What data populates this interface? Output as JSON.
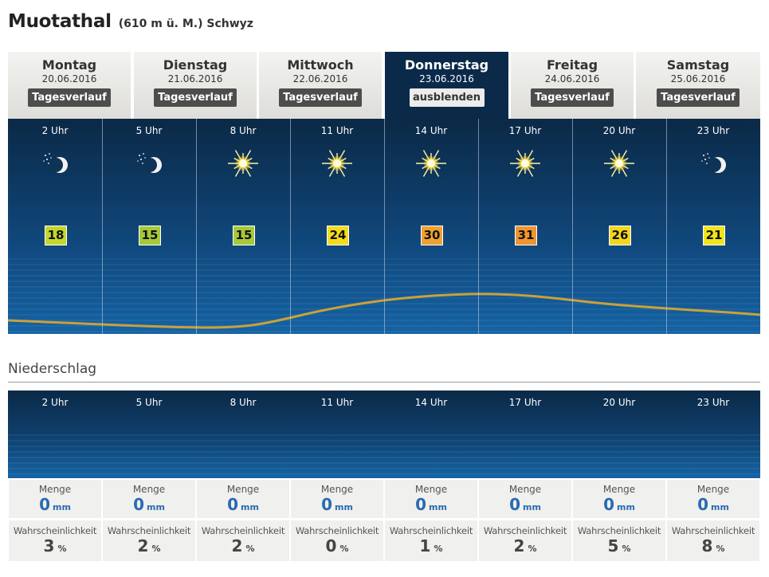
{
  "header": {
    "city": "Muotathal",
    "sub": "(610 m ü. M.) Schwyz"
  },
  "days": [
    {
      "day": "Montag",
      "date": "20.06.2016",
      "button": "Tagesverlauf",
      "active": false
    },
    {
      "day": "Dienstag",
      "date": "21.06.2016",
      "button": "Tagesverlauf",
      "active": false
    },
    {
      "day": "Mittwoch",
      "date": "22.06.2016",
      "button": "Tagesverlauf",
      "active": false
    },
    {
      "day": "Donnerstag",
      "date": "23.06.2016",
      "button": "ausblenden",
      "active": true
    },
    {
      "day": "Freitag",
      "date": "24.06.2016",
      "button": "Tagesverlauf",
      "active": false
    },
    {
      "day": "Samstag",
      "date": "25.06.2016",
      "button": "Tagesverlauf",
      "active": false
    }
  ],
  "slots": [
    {
      "hour": "2 Uhr",
      "icon": "moon-stars-icon",
      "temp": "18",
      "color": "#c4d62c"
    },
    {
      "hour": "5 Uhr",
      "icon": "moon-stars-icon",
      "temp": "15",
      "color": "#a6c93a"
    },
    {
      "hour": "8 Uhr",
      "icon": "sun-icon",
      "temp": "15",
      "color": "#a6c93a"
    },
    {
      "hour": "11 Uhr",
      "icon": "sun-icon",
      "temp": "24",
      "color": "#f4dc1c"
    },
    {
      "hour": "14 Uhr",
      "icon": "sun-icon",
      "temp": "30",
      "color": "#f0a132"
    },
    {
      "hour": "17 Uhr",
      "icon": "sun-icon",
      "temp": "31",
      "color": "#f0952e"
    },
    {
      "hour": "20 Uhr",
      "icon": "sun-icon",
      "temp": "26",
      "color": "#f4d620"
    },
    {
      "hour": "23 Uhr",
      "icon": "moon-stars-icon",
      "temp": "21",
      "color": "#f2e41c"
    }
  ],
  "precip": {
    "title": "Niederschlag",
    "menge_label": "Menge",
    "prob_label": "Wahrscheinlichkeit",
    "menge_unit": "mm",
    "prob_unit": "%",
    "values": [
      {
        "menge": "0",
        "prob": "3"
      },
      {
        "menge": "0",
        "prob": "2"
      },
      {
        "menge": "0",
        "prob": "2"
      },
      {
        "menge": "0",
        "prob": "0"
      },
      {
        "menge": "0",
        "prob": "1"
      },
      {
        "menge": "0",
        "prob": "2"
      },
      {
        "menge": "0",
        "prob": "5"
      },
      {
        "menge": "0",
        "prob": "8"
      }
    ]
  }
}
